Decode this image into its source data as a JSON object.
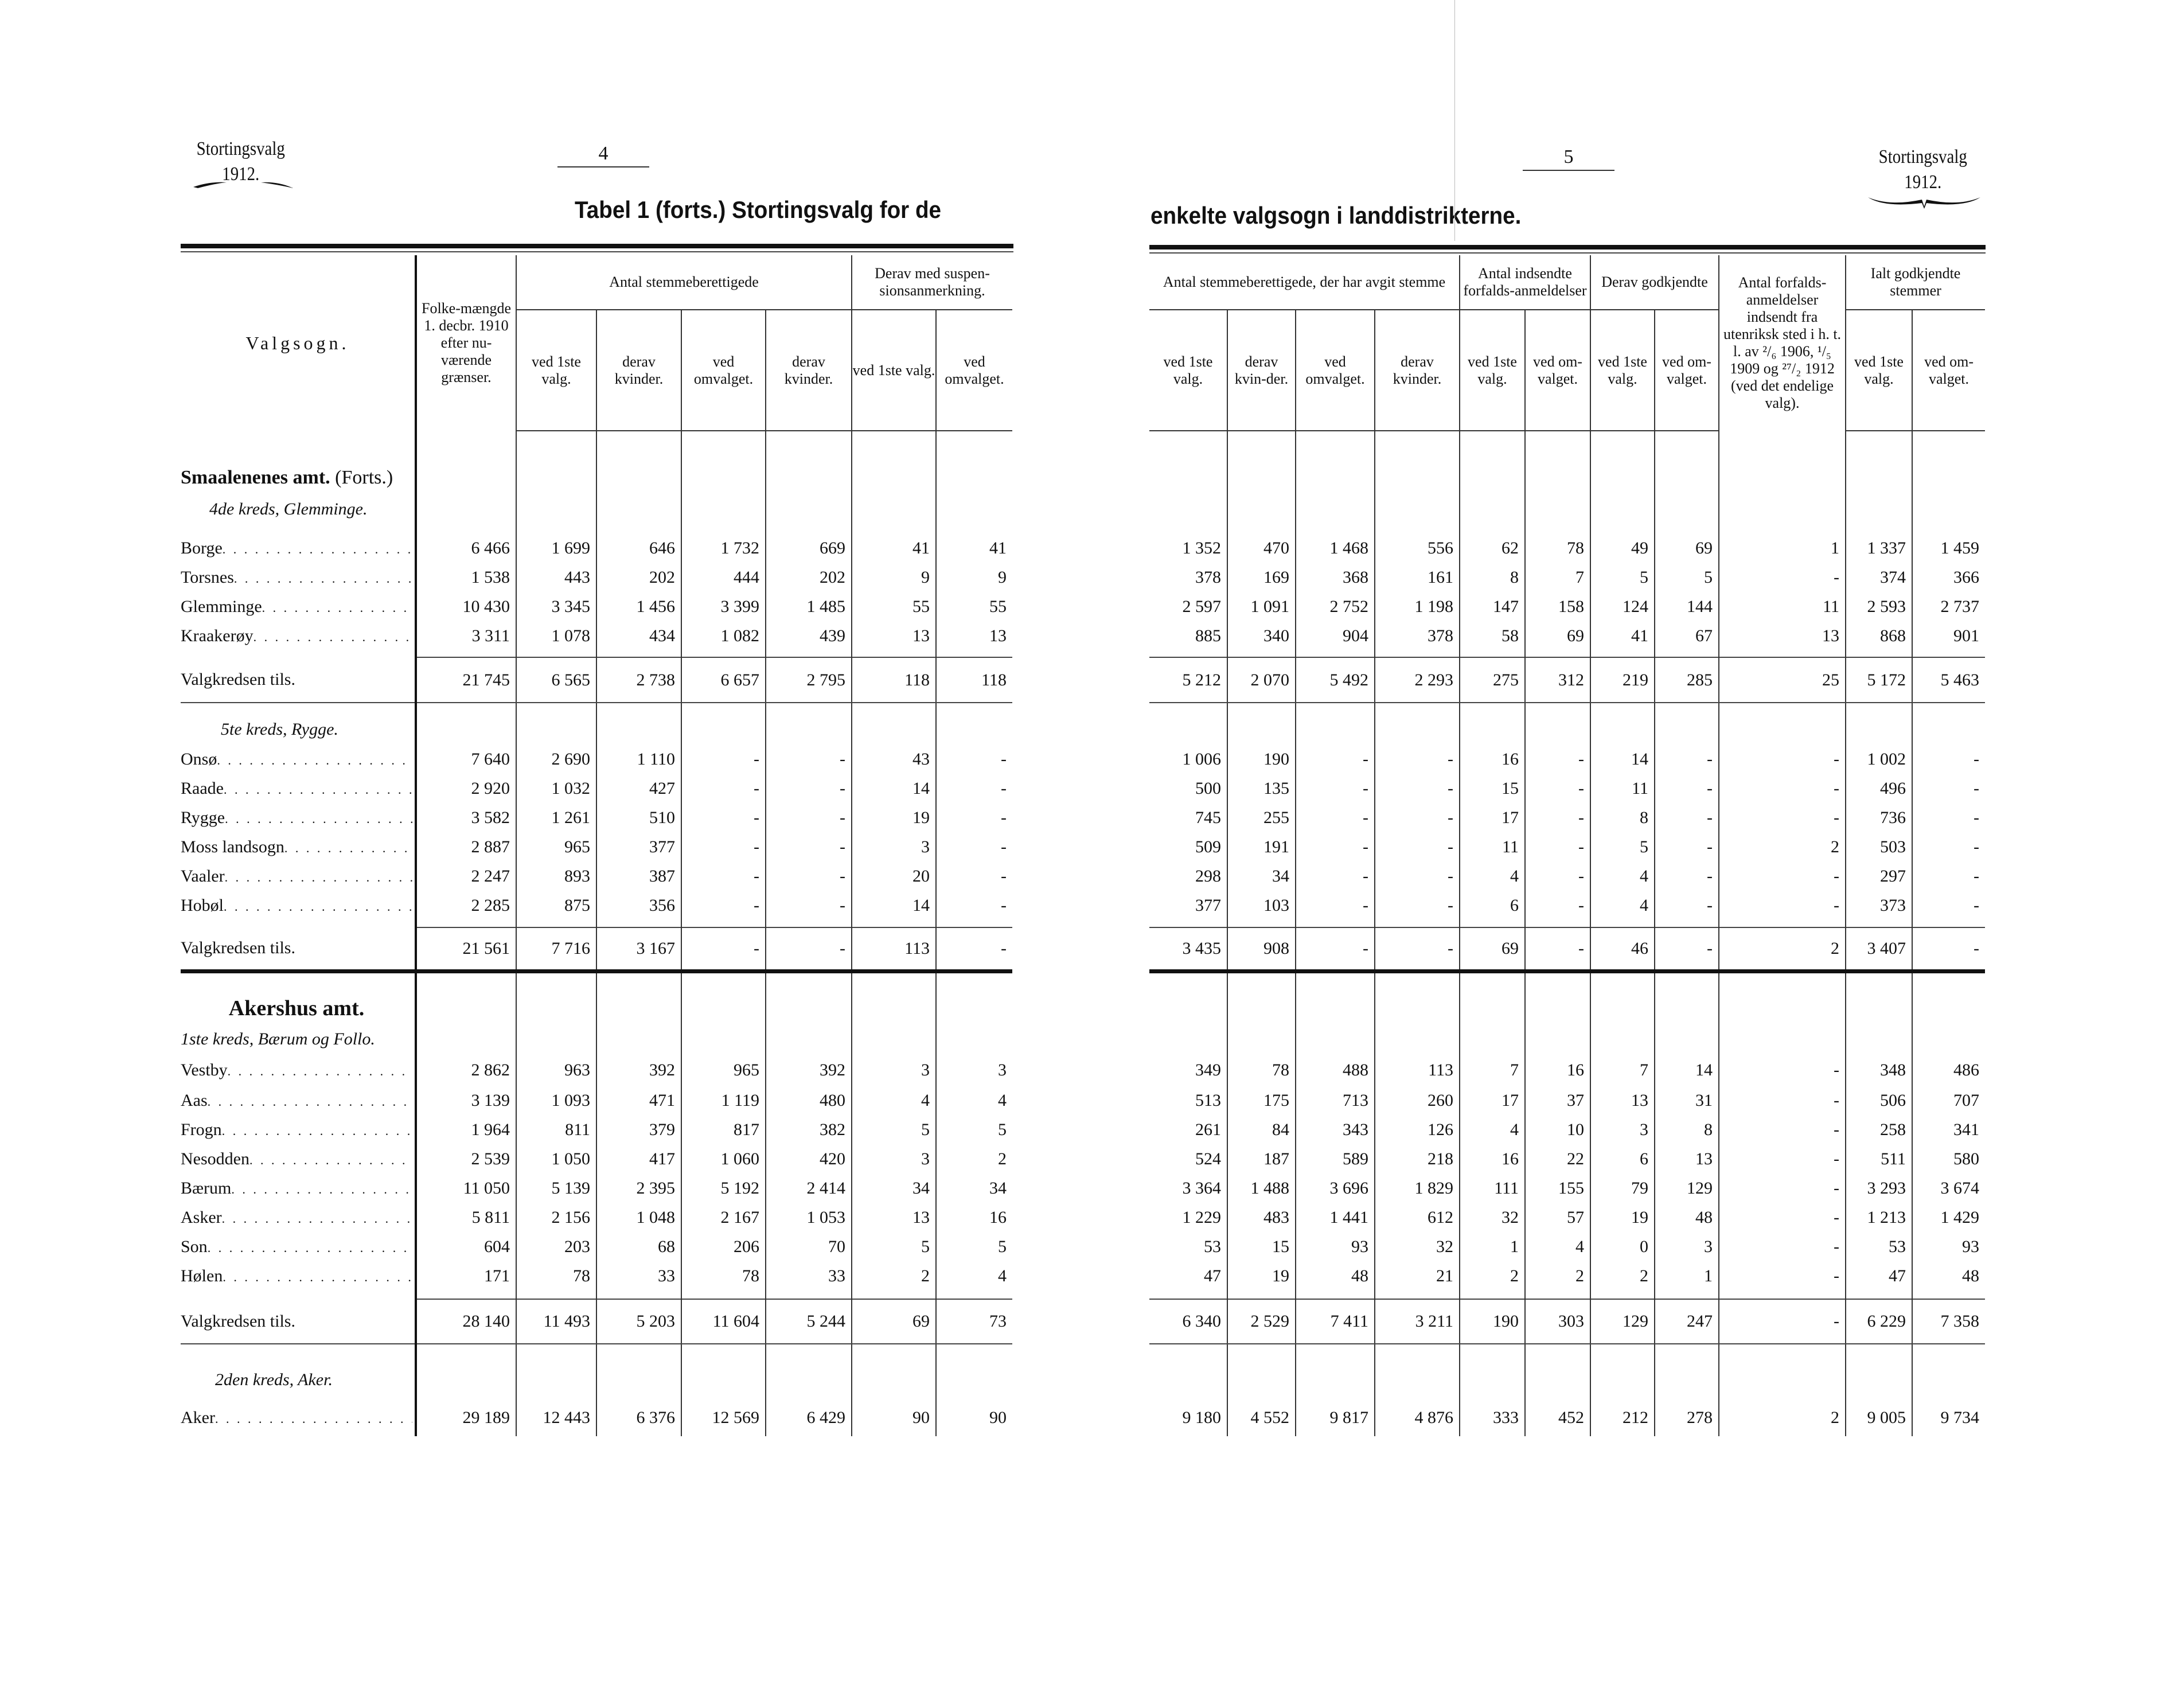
{
  "left_page": {
    "running_head": {
      "line1": "Stortingsvalg",
      "line2": "1912."
    },
    "page_number": "4",
    "title": "Tabel 1 (forts.) Stortingsvalg for de"
  },
  "right_page": {
    "running_head": {
      "line1": "Stortingsvalg",
      "line2": "1912."
    },
    "page_number": "5",
    "title": "enkelte valgsogn i landdistrikterne."
  },
  "left_header": {
    "valgsogn": "Valgsogn.",
    "folkemaengde": "Folke-mængde 1. decbr. 1910 efter nu-værende grænser.",
    "group_stemmeberettigede": "Antal stemmeberettigede",
    "group_suspension": "Derav med suspen-sionsanmerkning.",
    "sub": [
      "ved 1ste valg.",
      "derav kvinder.",
      "ved omvalget.",
      "derav kvinder.",
      "ved 1ste valg.",
      "ved omvalget."
    ]
  },
  "right_header": {
    "group_avgit": "Antal stemmeberettigede, der har avgit stemme",
    "group_indsendte": "Antal indsendte forfalds-anmeldelser",
    "group_godkjendte": "Derav godkjendte",
    "utenriksk": "Antal forfalds-anmeldelser indsendt fra utenriksk sted i h. t. l. av ²/₆ 1906, ¹/₅ 1909 og ²⁷/₂ 1912 (ved det endelige valg).",
    "group_ialt": "Ialt godkjendte stemmer",
    "sub": [
      "ved 1ste valg.",
      "derav kvin-der.",
      "ved omvalget.",
      "derav kvinder.",
      "ved 1ste valg.",
      "ved om-valget.",
      "ved 1ste valg.",
      "ved om-valget.",
      "ved 1ste valg.",
      "ved om-valget."
    ]
  },
  "rows": [
    {
      "type": "amt",
      "label": "Smaalenenes amt.",
      "suffix": "(Forts.)"
    },
    {
      "type": "kreds",
      "label": "4de kreds, Glemminge."
    },
    {
      "type": "sogn",
      "name": "Borge",
      "left": [
        "6 466",
        "1 699",
        "646",
        "1 732",
        "669",
        "41",
        "41"
      ],
      "right": [
        "1 352",
        "470",
        "1 468",
        "556",
        "62",
        "78",
        "49",
        "69",
        "1",
        "1 337",
        "1 459"
      ]
    },
    {
      "type": "sogn",
      "name": "Torsnes",
      "left": [
        "1 538",
        "443",
        "202",
        "444",
        "202",
        "9",
        "9"
      ],
      "right": [
        "378",
        "169",
        "368",
        "161",
        "8",
        "7",
        "5",
        "5",
        "-",
        "374",
        "366"
      ]
    },
    {
      "type": "sogn",
      "name": "Glemminge",
      "left": [
        "10 430",
        "3 345",
        "1 456",
        "3 399",
        "1 485",
        "55",
        "55"
      ],
      "right": [
        "2 597",
        "1 091",
        "2 752",
        "1 198",
        "147",
        "158",
        "124",
        "144",
        "11",
        "2 593",
        "2 737"
      ]
    },
    {
      "type": "sogn",
      "name": "Kraakerøy",
      "left": [
        "3 311",
        "1 078",
        "434",
        "1 082",
        "439",
        "13",
        "13"
      ],
      "right": [
        "885",
        "340",
        "904",
        "378",
        "58",
        "69",
        "41",
        "67",
        "13",
        "868",
        "901"
      ]
    },
    {
      "type": "total",
      "name": "Valgkredsen tils.",
      "left": [
        "21 745",
        "6 565",
        "2 738",
        "6 657",
        "2 795",
        "118",
        "118"
      ],
      "right": [
        "5 212",
        "2 070",
        "5 492",
        "2 293",
        "275",
        "312",
        "219",
        "285",
        "25",
        "5 172",
        "5 463"
      ]
    },
    {
      "type": "kreds",
      "label": "5te kreds, Rygge."
    },
    {
      "type": "sogn",
      "name": "Onsø",
      "left": [
        "7 640",
        "2 690",
        "1 110",
        "-",
        "-",
        "43",
        "-"
      ],
      "right": [
        "1 006",
        "190",
        "-",
        "-",
        "16",
        "-",
        "14",
        "-",
        "-",
        "1 002",
        "-"
      ]
    },
    {
      "type": "sogn",
      "name": "Raade",
      "left": [
        "2 920",
        "1 032",
        "427",
        "-",
        "-",
        "14",
        "-"
      ],
      "right": [
        "500",
        "135",
        "-",
        "-",
        "15",
        "-",
        "11",
        "-",
        "-",
        "496",
        "-"
      ]
    },
    {
      "type": "sogn",
      "name": "Rygge",
      "left": [
        "3 582",
        "1 261",
        "510",
        "-",
        "-",
        "19",
        "-"
      ],
      "right": [
        "745",
        "255",
        "-",
        "-",
        "17",
        "-",
        "8",
        "-",
        "-",
        "736",
        "-"
      ]
    },
    {
      "type": "sogn",
      "name": "Moss landsogn",
      "left": [
        "2 887",
        "965",
        "377",
        "-",
        "-",
        "3",
        "-"
      ],
      "right": [
        "509",
        "191",
        "-",
        "-",
        "11",
        "-",
        "5",
        "-",
        "2",
        "503",
        "-"
      ]
    },
    {
      "type": "sogn",
      "name": "Vaaler",
      "left": [
        "2 247",
        "893",
        "387",
        "-",
        "-",
        "20",
        "-"
      ],
      "right": [
        "298",
        "34",
        "-",
        "-",
        "4",
        "-",
        "4",
        "-",
        "-",
        "297",
        "-"
      ]
    },
    {
      "type": "sogn",
      "name": "Hobøl",
      "left": [
        "2 285",
        "875",
        "356",
        "-",
        "-",
        "14",
        "-"
      ],
      "right": [
        "377",
        "103",
        "-",
        "-",
        "6",
        "-",
        "4",
        "-",
        "-",
        "373",
        "-"
      ]
    },
    {
      "type": "total",
      "name": "Valgkredsen tils.",
      "left": [
        "21 561",
        "7 716",
        "3 167",
        "-",
        "-",
        "113",
        "-"
      ],
      "right": [
        "3 435",
        "908",
        "-",
        "-",
        "69",
        "-",
        "46",
        "-",
        "2",
        "3 407",
        "-"
      ]
    },
    {
      "type": "amt",
      "label": "Akershus amt.",
      "suffix": ""
    },
    {
      "type": "kreds",
      "label": "1ste kreds, Bærum og Follo."
    },
    {
      "type": "sogn",
      "name": "Vestby",
      "left": [
        "2 862",
        "963",
        "392",
        "965",
        "392",
        "3",
        "3"
      ],
      "right": [
        "349",
        "78",
        "488",
        "113",
        "7",
        "16",
        "7",
        "14",
        "-",
        "348",
        "486"
      ]
    },
    {
      "type": "sogn",
      "name": "Aas",
      "left": [
        "3 139",
        "1 093",
        "471",
        "1 119",
        "480",
        "4",
        "4"
      ],
      "right": [
        "513",
        "175",
        "713",
        "260",
        "17",
        "37",
        "13",
        "31",
        "-",
        "506",
        "707"
      ]
    },
    {
      "type": "sogn",
      "name": "Frogn",
      "left": [
        "1 964",
        "811",
        "379",
        "817",
        "382",
        "5",
        "5"
      ],
      "right": [
        "261",
        "84",
        "343",
        "126",
        "4",
        "10",
        "3",
        "8",
        "-",
        "258",
        "341"
      ]
    },
    {
      "type": "sogn",
      "name": "Nesodden",
      "left": [
        "2 539",
        "1 050",
        "417",
        "1 060",
        "420",
        "3",
        "2"
      ],
      "right": [
        "524",
        "187",
        "589",
        "218",
        "16",
        "22",
        "6",
        "13",
        "-",
        "511",
        "580"
      ]
    },
    {
      "type": "sogn",
      "name": "Bærum",
      "left": [
        "11 050",
        "5 139",
        "2 395",
        "5 192",
        "2 414",
        "34",
        "34"
      ],
      "right": [
        "3 364",
        "1 488",
        "3 696",
        "1 829",
        "111",
        "155",
        "79",
        "129",
        "-",
        "3 293",
        "3 674"
      ]
    },
    {
      "type": "sogn",
      "name": "Asker",
      "left": [
        "5 811",
        "2 156",
        "1 048",
        "2 167",
        "1 053",
        "13",
        "16"
      ],
      "right": [
        "1 229",
        "483",
        "1 441",
        "612",
        "32",
        "57",
        "19",
        "48",
        "-",
        "1 213",
        "1 429"
      ]
    },
    {
      "type": "sogn",
      "name": "Son",
      "left": [
        "604",
        "203",
        "68",
        "206",
        "70",
        "5",
        "5"
      ],
      "right": [
        "53",
        "15",
        "93",
        "32",
        "1",
        "4",
        "0",
        "3",
        "-",
        "53",
        "93"
      ]
    },
    {
      "type": "sogn",
      "name": "Hølen",
      "left": [
        "171",
        "78",
        "33",
        "78",
        "33",
        "2",
        "4"
      ],
      "right": [
        "47",
        "19",
        "48",
        "21",
        "2",
        "2",
        "2",
        "1",
        "-",
        "47",
        "48"
      ]
    },
    {
      "type": "total",
      "name": "Valgkredsen tils.",
      "left": [
        "28 140",
        "11 493",
        "5 203",
        "11 604",
        "5 244",
        "69",
        "73"
      ],
      "right": [
        "6 340",
        "2 529",
        "7 411",
        "3 211",
        "190",
        "303",
        "129",
        "247",
        "-",
        "6 229",
        "7 358"
      ]
    },
    {
      "type": "kreds",
      "label": "2den kreds, Aker."
    },
    {
      "type": "sogn",
      "name": "Aker",
      "left": [
        "29 189",
        "12 443",
        "6 376",
        "12 569",
        "6 429",
        "90",
        "90"
      ],
      "right": [
        "9 180",
        "4 552",
        "9 817",
        "4 876",
        "333",
        "452",
        "212",
        "278",
        "2",
        "9 005",
        "9 734"
      ]
    }
  ]
}
